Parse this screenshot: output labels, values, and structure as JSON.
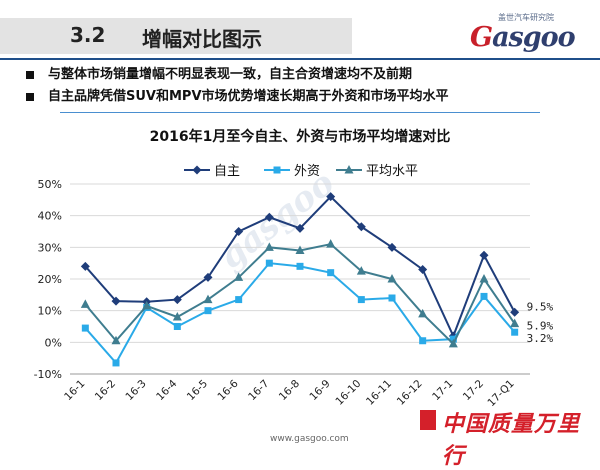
{
  "header": {
    "section_number": "3.2",
    "section_title": "增幅对比图示",
    "brand_cn": "盖世汽车研究院",
    "brand_logo_g": "G",
    "brand_logo_rest": "asgoo"
  },
  "bullets": [
    "与整体市场销量增幅不明显表现一致，自主合资增速均不及前期",
    "自主品牌凭借SUV和MPV市场优势增速长期高于外资和市场平均水平"
  ],
  "footer": {
    "url": "www.gasgoo.com",
    "slogan": "中国质量万里行"
  },
  "watermark": "gasgoo",
  "colors": {
    "series1": "#1f3d7a",
    "series2": "#2aaae8",
    "series3": "#3f7d8f",
    "header_rule": "#1f4f8a",
    "accent_red": "#d4202a"
  },
  "chart_data": {
    "type": "line",
    "title": "2016年1月至今自主、外资与市场平均增速对比",
    "categories": [
      "16-1",
      "16-2",
      "16-3",
      "16-4",
      "16-5",
      "16-6",
      "16-7",
      "16-8",
      "16-9",
      "16-10",
      "16-11",
      "16-12",
      "17-1",
      "17-2",
      "17-Q1"
    ],
    "yticks": [
      "50%",
      "40%",
      "30%",
      "20%",
      "10%",
      "0%",
      "-10%"
    ],
    "ylim": [
      -10,
      50
    ],
    "grid": true,
    "legend_position": "top",
    "series": [
      {
        "name": "自主",
        "marker": "diamond",
        "values": [
          24,
          13,
          12.8,
          13.5,
          20.5,
          35,
          39.5,
          36,
          46,
          36.5,
          30,
          23,
          2,
          27.5,
          9.5
        ]
      },
      {
        "name": "外资",
        "marker": "square",
        "values": [
          4.5,
          -6.5,
          11,
          5,
          10,
          13.5,
          25,
          24,
          22,
          13.5,
          14,
          0.5,
          1,
          14.5,
          3.2
        ]
      },
      {
        "name": "平均水平",
        "marker": "triangle",
        "values": [
          12,
          0.5,
          11.5,
          8,
          13.5,
          20.5,
          30,
          29,
          31,
          22.5,
          20,
          9,
          -0.5,
          20,
          5.9
        ]
      }
    ],
    "end_labels": [
      "9.5%",
      "5.9%",
      "3.2%"
    ]
  }
}
